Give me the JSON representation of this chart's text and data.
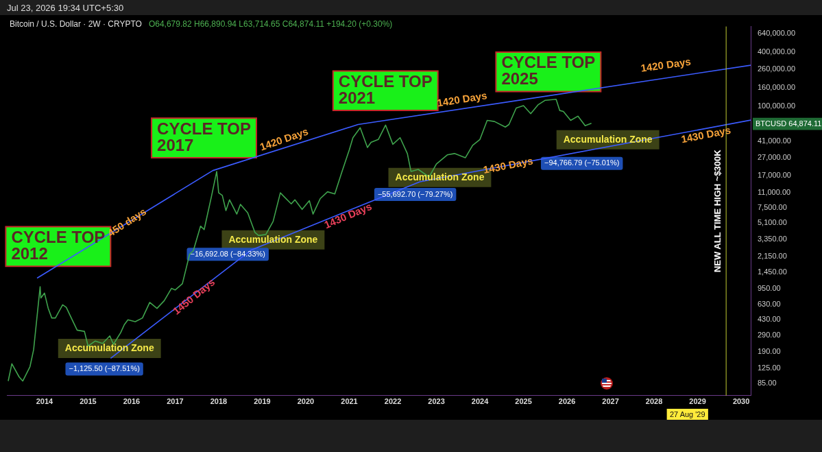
{
  "chart_data": {
    "type": "line",
    "title": "Bitcoin / U.S. Dollar · 2W · CRYPTO",
    "subtitle": "O64,679.82 H66,890.94 L63,714.65 C64,874.11 +194.20 (+0.30%)",
    "series": [
      {
        "color": "#3fa34d",
        "x": [
          "2013-03",
          "2013-04",
          "2013-06",
          "2013-07",
          "2013-09",
          "2013-10",
          "2013-11-25",
          "2013-12",
          "2014-01",
          "2014-02",
          "2014-03",
          "2014-04",
          "2014-06",
          "2014-07",
          "2014-09",
          "2014-10",
          "2014-12",
          "2015-01",
          "2015-03",
          "2015-05",
          "2015-07",
          "2015-08",
          "2015-10",
          "2015-11",
          "2015-12",
          "2016-02",
          "2016-04",
          "2016-06",
          "2016-08",
          "2016-10",
          "2016-12",
          "2017-01",
          "2017-03",
          "2017-05",
          "2017-06",
          "2017-08",
          "2017-09",
          "2017-11",
          "2017-12-15",
          "2018-01",
          "2018-02",
          "2018-03",
          "2018-04",
          "2018-06",
          "2018-07",
          "2018-09",
          "2018-11",
          "2018-12",
          "2019-02",
          "2019-04",
          "2019-06",
          "2019-07",
          "2019-09",
          "2019-10",
          "2019-12",
          "2020-02",
          "2020-03",
          "2020-05",
          "2020-07",
          "2020-09",
          "2020-11",
          "2021-01",
          "2021-02",
          "2021-04",
          "2021-06",
          "2021-07",
          "2021-09",
          "2021-11",
          "2022-01",
          "2022-03",
          "2022-05",
          "2022-06",
          "2022-08",
          "2022-11",
          "2023-01",
          "2023-04",
          "2023-06",
          "2023-09",
          "2023-11",
          "2024-01",
          "2024-03",
          "2024-05",
          "2024-08",
          "2024-09",
          "2024-11",
          "2025-01",
          "2025-03",
          "2025-05",
          "2025-07",
          "2025-10",
          "2025-11",
          "2025-12",
          "2026-02",
          "2026-04",
          "2026-06",
          "2026-07-23"
        ],
        "values": [
          90,
          140,
          100,
          90,
          130,
          200,
          1000,
          750,
          850,
          580,
          450,
          450,
          630,
          590,
          400,
          330,
          320,
          220,
          250,
          235,
          285,
          230,
          310,
          380,
          430,
          410,
          450,
          670,
          575,
          700,
          960,
          920,
          1080,
          2300,
          2500,
          4700,
          4300,
          10000,
          19000,
          11000,
          10300,
          7000,
          9200,
          6400,
          8200,
          6600,
          4000,
          3700,
          3800,
          5300,
          11000,
          10000,
          8300,
          9200,
          7200,
          9000,
          6400,
          9500,
          11300,
          10700,
          19000,
          33000,
          45000,
          58000,
          35000,
          40000,
          43000,
          62000,
          38000,
          45000,
          30000,
          19000,
          20000,
          16500,
          23000,
          29000,
          30000,
          27000,
          37000,
          43000,
          70000,
          68000,
          59000,
          63000,
          96000,
          102000,
          83000,
          104000,
          117000,
          120000,
          90000,
          88000,
          70000,
          78000,
          61000,
          64874.11
        ]
      },
      {
        "color": "#3b5bff",
        "x": [
          "2013-10-30",
          "2017-11-13",
          "2021-03-14",
          "2030-03-20"
        ],
        "values": [
          1245,
          19450,
          63000,
          286000
        ]
      },
      {
        "color": "#3b5bff",
        "x": [
          "2015-07-08",
          "2018-10-01",
          "2022-08-15",
          "2030-03-20"
        ],
        "values": [
          161,
          2560,
          14600,
          70500
        ]
      }
    ],
    "xlim": [
      "2013-02-20",
      "2030-03-20"
    ],
    "xticks": [
      "2014",
      "2015",
      "2016",
      "2017",
      "2018",
      "2019",
      "2020",
      "2021",
      "2022",
      "2023",
      "2024",
      "2025",
      "2026",
      "2027",
      "2028",
      "2029",
      "2030"
    ],
    "log": true,
    "ylim": [
      62,
      770000
    ],
    "yticks": [
      {
        "value": 85,
        "label": "85.00"
      },
      {
        "value": 125,
        "label": "125.00"
      },
      {
        "value": 190,
        "label": "190.00"
      },
      {
        "value": 290,
        "label": "290.00"
      },
      {
        "value": 430,
        "label": "430.00"
      },
      {
        "value": 630,
        "label": "630.00"
      },
      {
        "value": 950,
        "label": "950.00"
      },
      {
        "value": 1450,
        "label": "1,450.00"
      },
      {
        "value": 2150,
        "label": "2,150.00"
      },
      {
        "value": 3350,
        "label": "3,350.00"
      },
      {
        "value": 5100,
        "label": "5,100.00"
      },
      {
        "value": 7500,
        "label": "7,500.00"
      },
      {
        "value": 11000,
        "label": "11,000.00"
      },
      {
        "value": 17000,
        "label": "17,000.00"
      },
      {
        "value": 27000,
        "label": "27,000.00"
      },
      {
        "value": 41000,
        "label": "41,000.00"
      },
      {
        "value": 100000,
        "label": "100,000.00"
      },
      {
        "value": 160000,
        "label": "160,000.00"
      },
      {
        "value": 260000,
        "label": "260,000.00"
      },
      {
        "value": 400000,
        "label": "400,000.00"
      },
      {
        "value": 640000,
        "label": "640,000.00"
      }
    ],
    "ref_lines": [
      {
        "axis": "x",
        "value": "2029-08-27",
        "label": "NEW ALL TIME HIGH ~$300K",
        "color": "#c0ca33"
      }
    ],
    "annotations": [
      "Jul 23, 2026 19:34 UTC+5:30",
      "CYCLE TOP\n2012",
      "CYCLE TOP\n2017",
      "CYCLE TOP\n2021",
      "CYCLE TOP\n2025",
      "450 days",
      "1420 Days",
      "1420 Days",
      "1420 Days",
      "1450 Days",
      "1430 Days",
      "1430 Days",
      "1430 Days",
      "Accumulation Zone",
      "Accumulation Zone",
      "Accumulation Zone",
      "Accumulation Zone",
      "−1,125.50 (−87.51%)",
      "−16,692.08 (−84.33%)",
      "−55,692.70 (−79.27%)",
      "−94,766.79 (−75.01%)",
      "BTCUSD 64,874.11",
      "27 Aug '29"
    ]
  }
}
